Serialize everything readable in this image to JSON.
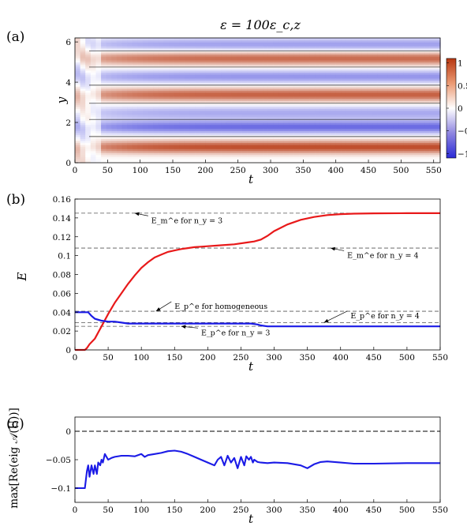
{
  "chart_data": [
    {
      "type": "heatmap",
      "panel_label": "(a)",
      "title": "ε = 100ε_c,z",
      "xlabel": "t",
      "ylabel": "y",
      "xlim": [
        0,
        560
      ],
      "ylim": [
        0,
        6.2
      ],
      "xticks": [
        0,
        50,
        100,
        150,
        200,
        250,
        300,
        350,
        400,
        450,
        500,
        550
      ],
      "yticks": [
        0,
        2,
        4,
        6
      ],
      "colorbar": {
        "ticks": [
          1,
          0.5,
          0,
          -0.5,
          -1
        ],
        "tick_labels": [
          "1",
          "0.5",
          "0",
          "−0.5",
          "−1"
        ],
        "range": [
          -1.1,
          1.1
        ]
      },
      "colors": {
        "positive": "#b73711",
        "zero": "#ffffff",
        "negative": "#2a2ad6"
      },
      "bands_late": [
        {
          "center": 0.8,
          "value": 0.9
        },
        {
          "center": 1.8,
          "value": -0.7
        },
        {
          "center": 2.5,
          "value": -0.4
        },
        {
          "center": 3.4,
          "value": 0.8
        },
        {
          "center": 4.3,
          "value": -0.5
        },
        {
          "center": 5.2,
          "value": 0.75
        },
        {
          "center": 5.9,
          "value": -0.45
        }
      ],
      "contour_levels": [
        0
      ]
    },
    {
      "type": "line",
      "panel_label": "(b)",
      "xlabel": "t",
      "ylabel": "E",
      "xlim": [
        0,
        550
      ],
      "ylim": [
        0,
        0.16
      ],
      "xticks": [
        0,
        50,
        100,
        150,
        200,
        250,
        300,
        350,
        400,
        450,
        500,
        550
      ],
      "yticks": [
        0,
        0.02,
        0.04,
        0.06,
        0.08,
        0.1,
        0.12,
        0.14,
        0.16
      ],
      "ytick_labels": [
        "0",
        "0.02",
        "0.04",
        "0.06",
        "0.08",
        "0.1",
        "0.12",
        "0.14",
        "0.16"
      ],
      "series": [
        {
          "color": "#e8191a",
          "x": [
            0,
            10,
            15,
            18,
            22,
            30,
            40,
            50,
            60,
            70,
            80,
            90,
            100,
            110,
            120,
            130,
            140,
            150,
            160,
            170,
            180,
            190,
            200,
            220,
            240,
            260,
            270,
            280,
            290,
            300,
            320,
            340,
            360,
            380,
            400,
            420,
            450,
            500,
            550
          ],
          "y": [
            0,
            0,
            0,
            0.002,
            0.006,
            0.012,
            0.025,
            0.038,
            0.05,
            0.06,
            0.07,
            0.079,
            0.087,
            0.093,
            0.098,
            0.101,
            0.104,
            0.1055,
            0.107,
            0.108,
            0.109,
            0.1095,
            0.11,
            0.111,
            0.112,
            0.114,
            0.115,
            0.117,
            0.121,
            0.126,
            0.133,
            0.138,
            0.141,
            0.143,
            0.144,
            0.1445,
            0.1448,
            0.145,
            0.145
          ]
        },
        {
          "color": "#1b1be6",
          "x": [
            0,
            10,
            20,
            25,
            30,
            40,
            50,
            60,
            70,
            80,
            90,
            100,
            150,
            200,
            250,
            265,
            275,
            280,
            290,
            300,
            350,
            400,
            450,
            500,
            550
          ],
          "y": [
            0.04,
            0.04,
            0.04,
            0.036,
            0.033,
            0.031,
            0.03,
            0.03,
            0.029,
            0.028,
            0.028,
            0.028,
            0.028,
            0.028,
            0.028,
            0.028,
            0.027,
            0.026,
            0.025,
            0.025,
            0.025,
            0.025,
            0.025,
            0.025,
            0.025
          ]
        }
      ],
      "reference_lines": [
        0.145,
        0.108,
        0.041,
        0.029,
        0.025
      ],
      "annotations": [
        {
          "text": "E_m^e for n_y = 3",
          "x": 115,
          "y": 0.138,
          "arrow_to": [
            90,
            0.145
          ]
        },
        {
          "text": "E_m^e for n_y = 4",
          "x": 410,
          "y": 0.101,
          "arrow_to": [
            385,
            0.108
          ]
        },
        {
          "text": "E_p^e for homogeneous",
          "x": 150,
          "y": 0.047,
          "arrow_to": [
            122,
            0.041
          ]
        },
        {
          "text": "E_p^e for n_y = 4",
          "x": 415,
          "y": 0.037,
          "arrow_to": [
            375,
            0.029
          ]
        },
        {
          "text": "E_p^e for n_y = 3",
          "x": 190,
          "y": 0.019,
          "arrow_to": [
            160,
            0.025
          ]
        }
      ]
    },
    {
      "type": "line",
      "panel_label": "(c)",
      "xlabel": "t",
      "ylabel": "max[Re(eig 𝒜(U))]",
      "xlim": [
        0,
        550
      ],
      "ylim": [
        -0.125,
        0.025
      ],
      "xticks": [
        0,
        50,
        100,
        150,
        200,
        250,
        300,
        350,
        400,
        450,
        500,
        550
      ],
      "yticks": [
        0,
        -0.05,
        -0.1
      ],
      "ytick_labels": [
        "0",
        "−0.05",
        "−0.1"
      ],
      "zero_line": 0,
      "series": [
        {
          "color": "#1b1be6",
          "x": [
            0,
            10,
            15,
            18,
            20,
            22,
            25,
            28,
            30,
            33,
            35,
            38,
            40,
            42,
            45,
            50,
            55,
            60,
            70,
            80,
            90,
            95,
            100,
            105,
            110,
            120,
            130,
            140,
            150,
            160,
            170,
            180,
            190,
            200,
            210,
            215,
            220,
            225,
            230,
            235,
            240,
            245,
            250,
            255,
            258,
            262,
            265,
            268,
            270,
            275,
            280,
            290,
            300,
            320,
            340,
            350,
            360,
            370,
            380,
            400,
            420,
            450,
            500,
            550
          ],
          "y": [
            -0.1,
            -0.1,
            -0.1,
            -0.07,
            -0.06,
            -0.08,
            -0.06,
            -0.075,
            -0.06,
            -0.075,
            -0.055,
            -0.06,
            -0.05,
            -0.055,
            -0.04,
            -0.05,
            -0.047,
            -0.045,
            -0.043,
            -0.043,
            -0.044,
            -0.042,
            -0.04,
            -0.045,
            -0.042,
            -0.04,
            -0.038,
            -0.035,
            -0.034,
            -0.036,
            -0.04,
            -0.045,
            -0.05,
            -0.055,
            -0.06,
            -0.05,
            -0.045,
            -0.06,
            -0.043,
            -0.055,
            -0.047,
            -0.065,
            -0.045,
            -0.06,
            -0.044,
            -0.05,
            -0.045,
            -0.055,
            -0.05,
            -0.054,
            -0.055,
            -0.056,
            -0.055,
            -0.056,
            -0.06,
            -0.065,
            -0.058,
            -0.054,
            -0.053,
            -0.055,
            -0.057,
            -0.057,
            -0.056,
            -0.056
          ]
        }
      ]
    }
  ]
}
